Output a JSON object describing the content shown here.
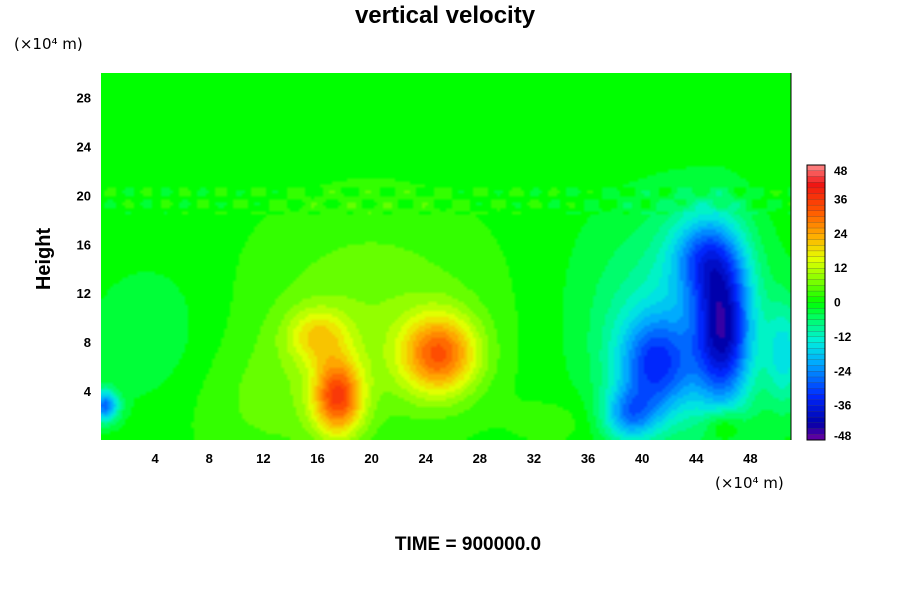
{
  "chart_data": {
    "type": "heatmap",
    "title": "vertical velocity",
    "ylabel": "Height",
    "y_unit_label": "(×10⁴ m)",
    "x_unit_label": "(×10⁴ m)",
    "xlim": [
      0,
      51
    ],
    "ylim": [
      0,
      30
    ],
    "x_ticks": [
      "4",
      "8",
      "12",
      "16",
      "20",
      "24",
      "28",
      "32",
      "36",
      "40",
      "44",
      "48"
    ],
    "y_ticks": [
      "4",
      "8",
      "12",
      "16",
      "20",
      "24",
      "28"
    ],
    "colorbar": {
      "range": [
        -48,
        48
      ],
      "ticks": [
        "48",
        "36",
        "24",
        "12",
        "0",
        "-12",
        "-24",
        "-36",
        "-48"
      ]
    },
    "grid": false,
    "colors": {
      "background": "#00ff00",
      "positive_max": "#ff2000",
      "negative_max": "#0000a0"
    },
    "features": [
      {
        "x": 25,
        "y": 7,
        "sx": 2.0,
        "sy": 2.3,
        "value": 28
      },
      {
        "x": 17.5,
        "y": 3.5,
        "sx": 1.3,
        "sy": 2.2,
        "value": 30
      },
      {
        "x": 16.0,
        "y": 8.5,
        "sx": 1.6,
        "sy": 1.6,
        "value": 14
      },
      {
        "x": 20,
        "y": 10,
        "sx": 6.5,
        "sy": 6.5,
        "value": 7
      },
      {
        "x": 12,
        "y": 3,
        "sx": 5,
        "sy": 4,
        "value": 4
      },
      {
        "x": 46,
        "y": 9,
        "sx": 1.5,
        "sy": 4.5,
        "value": -36
      },
      {
        "x": 44.5,
        "y": 15,
        "sx": 1.8,
        "sy": 2.5,
        "value": -20
      },
      {
        "x": 41,
        "y": 6,
        "sx": 2.0,
        "sy": 3.0,
        "value": -26
      },
      {
        "x": 39,
        "y": 2,
        "sx": 1.4,
        "sy": 1.5,
        "value": -18
      },
      {
        "x": 42,
        "y": 10,
        "sx": 4.5,
        "sy": 6.0,
        "value": -10
      },
      {
        "x": 50.5,
        "y": 7,
        "sx": 1.0,
        "sy": 3.0,
        "value": -14
      },
      {
        "x": 4,
        "y": 8,
        "sx": 3.5,
        "sy": 4.5,
        "value": -4
      },
      {
        "x": 0.3,
        "y": 2.8,
        "sx": 0.7,
        "sy": 0.9,
        "value": -26
      },
      {
        "x": 46,
        "y": 1.2,
        "sx": 1.0,
        "sy": 1.0,
        "value": 10
      },
      {
        "x": 34,
        "y": 1.5,
        "sx": 2.5,
        "sy": 1.5,
        "value": 3
      }
    ]
  },
  "footer": {
    "time_label": "TIME = 900000.0"
  }
}
